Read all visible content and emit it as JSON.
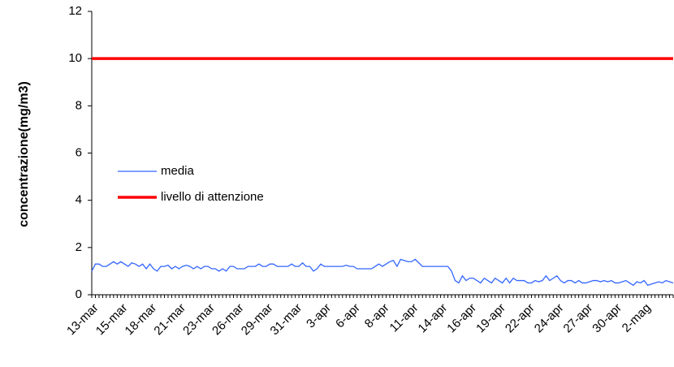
{
  "chart_data": {
    "type": "line",
    "y_label": "concentrazione(mg/m3)",
    "categories": [
      "13-mar",
      null,
      null,
      null,
      null,
      null,
      null,
      null,
      "15-mar",
      null,
      null,
      null,
      null,
      null,
      null,
      null,
      "18-mar",
      null,
      null,
      null,
      null,
      null,
      null,
      null,
      "21-mar",
      null,
      null,
      null,
      null,
      null,
      null,
      null,
      "23-mar",
      null,
      null,
      null,
      null,
      null,
      null,
      null,
      "26-mar",
      null,
      null,
      null,
      null,
      null,
      null,
      null,
      "29-mar",
      null,
      null,
      null,
      null,
      null,
      null,
      null,
      "31-mar",
      null,
      null,
      null,
      null,
      null,
      null,
      null,
      "3-apr",
      null,
      null,
      null,
      null,
      null,
      null,
      null,
      "6-apr",
      null,
      null,
      null,
      null,
      null,
      null,
      null,
      "8-apr",
      null,
      null,
      null,
      null,
      null,
      null,
      null,
      "11-apr",
      null,
      null,
      null,
      null,
      null,
      null,
      null,
      "14-apr",
      null,
      null,
      null,
      null,
      null,
      null,
      null,
      "16-apr",
      null,
      null,
      null,
      null,
      null,
      null,
      null,
      "19-apr",
      null,
      null,
      null,
      null,
      null,
      null,
      null,
      "22-apr",
      null,
      null,
      null,
      null,
      null,
      null,
      null,
      "24-apr",
      null,
      null,
      null,
      null,
      null,
      null,
      null,
      "27-apr",
      null,
      null,
      null,
      null,
      null,
      null,
      null,
      "30-apr",
      null,
      null,
      null,
      null,
      null,
      null,
      null,
      "2-mag",
      null,
      null,
      null,
      null,
      null,
      null,
      null,
      null
    ],
    "series": [
      {
        "name": "media",
        "color": "#3366ff",
        "width": 1.3,
        "values": [
          1.0,
          1.3,
          1.3,
          1.2,
          1.2,
          1.3,
          1.4,
          1.3,
          1.4,
          1.3,
          1.2,
          1.35,
          1.3,
          1.2,
          1.3,
          1.1,
          1.3,
          1.1,
          1.0,
          1.2,
          1.2,
          1.25,
          1.1,
          1.2,
          1.1,
          1.2,
          1.25,
          1.2,
          1.1,
          1.2,
          1.1,
          1.2,
          1.2,
          1.1,
          1.1,
          1.0,
          1.1,
          1.0,
          1.2,
          1.2,
          1.1,
          1.1,
          1.1,
          1.2,
          1.2,
          1.2,
          1.3,
          1.2,
          1.2,
          1.3,
          1.3,
          1.2,
          1.2,
          1.2,
          1.2,
          1.3,
          1.2,
          1.2,
          1.35,
          1.2,
          1.2,
          1.0,
          1.1,
          1.3,
          1.2,
          1.2,
          1.2,
          1.2,
          1.2,
          1.2,
          1.25,
          1.2,
          1.2,
          1.1,
          1.1,
          1.1,
          1.1,
          1.1,
          1.2,
          1.3,
          1.2,
          1.3,
          1.4,
          1.45,
          1.2,
          1.5,
          1.45,
          1.4,
          1.4,
          1.5,
          1.35,
          1.2,
          1.2,
          1.2,
          1.2,
          1.2,
          1.2,
          1.2,
          1.2,
          1.0,
          0.6,
          0.5,
          0.8,
          0.6,
          0.7,
          0.7,
          0.6,
          0.5,
          0.7,
          0.6,
          0.5,
          0.7,
          0.6,
          0.5,
          0.7,
          0.5,
          0.7,
          0.6,
          0.6,
          0.6,
          0.5,
          0.5,
          0.6,
          0.55,
          0.6,
          0.8,
          0.6,
          0.7,
          0.8,
          0.6,
          0.5,
          0.6,
          0.6,
          0.5,
          0.6,
          0.5,
          0.5,
          0.55,
          0.6,
          0.6,
          0.55,
          0.6,
          0.55,
          0.6,
          0.5,
          0.5,
          0.55,
          0.6,
          0.5,
          0.4,
          0.55,
          0.5,
          0.6,
          0.4,
          0.45,
          0.5,
          0.55,
          0.5,
          0.6,
          0.55,
          0.5
        ]
      },
      {
        "name": "livello di attenzione",
        "color": "#ff0000",
        "width": 3.5,
        "values": [
          10,
          10,
          10,
          10,
          10,
          10,
          10,
          10,
          10,
          10,
          10,
          10,
          10,
          10,
          10,
          10,
          10,
          10,
          10,
          10,
          10,
          10,
          10,
          10,
          10,
          10,
          10,
          10,
          10,
          10,
          10,
          10,
          10,
          10,
          10,
          10,
          10,
          10,
          10,
          10,
          10,
          10,
          10,
          10,
          10,
          10,
          10,
          10,
          10,
          10,
          10,
          10,
          10,
          10,
          10,
          10,
          10,
          10,
          10,
          10,
          10,
          10,
          10,
          10,
          10,
          10,
          10,
          10,
          10,
          10,
          10,
          10,
          10,
          10,
          10,
          10,
          10,
          10,
          10,
          10,
          10,
          10,
          10,
          10,
          10,
          10,
          10,
          10,
          10,
          10,
          10,
          10,
          10,
          10,
          10,
          10,
          10,
          10,
          10,
          10,
          10,
          10,
          10,
          10,
          10,
          10,
          10,
          10,
          10,
          10,
          10,
          10,
          10,
          10,
          10,
          10,
          10,
          10,
          10,
          10,
          10,
          10,
          10,
          10,
          10,
          10,
          10,
          10,
          10,
          10,
          10,
          10,
          10,
          10,
          10,
          10,
          10,
          10,
          10,
          10,
          10,
          10,
          10,
          10,
          10,
          10,
          10,
          10,
          10,
          10,
          10,
          10,
          10,
          10,
          10,
          10,
          10,
          10,
          10,
          10,
          10
        ]
      }
    ],
    "ylim": [
      0,
      12
    ],
    "yticks": [
      0,
      2,
      4,
      6,
      8,
      10,
      12
    ],
    "grid": false
  }
}
